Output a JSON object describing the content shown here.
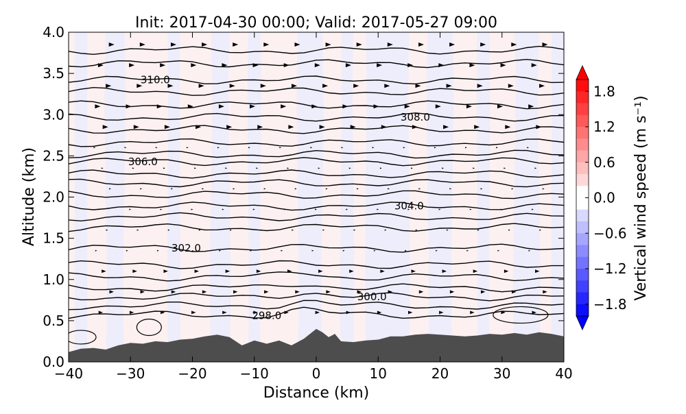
{
  "chart_data": {
    "type": "contour",
    "title": "Init: 2017-04-30 00:00; Valid: 2017-05-27 09:00",
    "xlabel": "Distance (km)",
    "ylabel": "Altitude (km)",
    "xlim": [
      -40,
      40
    ],
    "ylim": [
      0.0,
      4.0
    ],
    "x_ticks": [
      "−40",
      "−30",
      "−20",
      "−10",
      "0",
      "10",
      "20",
      "30",
      "40"
    ],
    "y_ticks": [
      "0.0",
      "0.5",
      "1.0",
      "1.5",
      "2.0",
      "2.5",
      "3.0",
      "3.5",
      "4.0"
    ],
    "grid": false,
    "shaded_field": {
      "quantity": "vertical wind speed",
      "colormap": "blue-white-red",
      "colors": {
        "negative": "#0000ff",
        "zero": "#ffffff",
        "positive": "#ff0000"
      },
      "range": [
        -2.0,
        2.0
      ]
    },
    "colorbar": {
      "label": "Vertical wind speed (m s⁻¹)",
      "ticks": [
        "1.8",
        "1.2",
        "0.6",
        "0.0",
        "−0.6",
        "−1.2",
        "−1.8"
      ],
      "extend": "both",
      "position": "right"
    },
    "contour_labels": [
      {
        "text": "310.0",
        "x": -26,
        "y": 3.42
      },
      {
        "text": "308.0",
        "x": 16,
        "y": 2.97
      },
      {
        "text": "306.0",
        "x": -28,
        "y": 2.43
      },
      {
        "text": "304.0",
        "x": 15,
        "y": 1.89
      },
      {
        "text": "302.0",
        "x": -21,
        "y": 1.38
      },
      {
        "text": "300.0",
        "x": 9,
        "y": 0.79
      },
      {
        "text": "298.0",
        "x": -8,
        "y": 0.56
      }
    ],
    "terrain": {
      "color": "#4d4d4d",
      "x": [
        -40,
        -38,
        -36,
        -34,
        -32,
        -30,
        -28,
        -26,
        -24,
        -22,
        -20,
        -18,
        -16,
        -14,
        -12,
        -10,
        -8,
        -6,
        -4,
        -2,
        0,
        1,
        2,
        3,
        4,
        6,
        8,
        10,
        12,
        14,
        16,
        18,
        20,
        22,
        24,
        26,
        28,
        30,
        32,
        34,
        36,
        38,
        40
      ],
      "y": [
        0.12,
        0.16,
        0.17,
        0.15,
        0.2,
        0.23,
        0.22,
        0.25,
        0.24,
        0.27,
        0.28,
        0.31,
        0.33,
        0.3,
        0.2,
        0.26,
        0.22,
        0.26,
        0.2,
        0.28,
        0.4,
        0.36,
        0.3,
        0.34,
        0.25,
        0.24,
        0.26,
        0.27,
        0.31,
        0.31,
        0.33,
        0.34,
        0.33,
        0.32,
        0.31,
        0.32,
        0.34,
        0.33,
        0.35,
        0.33,
        0.36,
        0.34,
        0.31
      ]
    }
  }
}
